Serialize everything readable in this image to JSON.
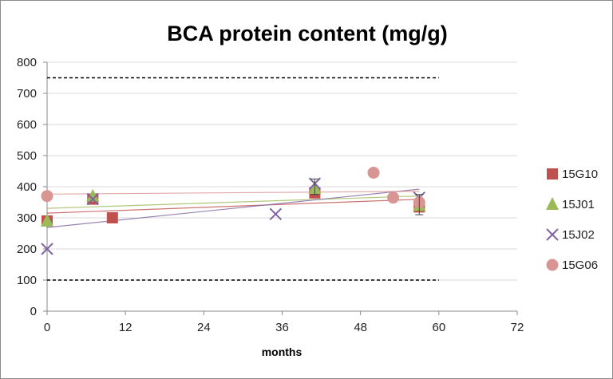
{
  "chart_data": {
    "type": "scatter",
    "title": "BCA protein content (mg/g)",
    "xlabel": "months",
    "ylabel": "",
    "xlim": [
      0,
      72
    ],
    "ylim": [
      0,
      800
    ],
    "xticks": [
      0,
      12,
      24,
      36,
      48,
      60,
      72
    ],
    "yticks": [
      0,
      100,
      200,
      300,
      400,
      500,
      600,
      700,
      800
    ],
    "grid": "horizontal",
    "legend_position": "right",
    "reference_lines": [
      {
        "y": 750,
        "x_range": [
          0,
          60
        ],
        "style": "dashed",
        "color": "#000000"
      },
      {
        "y": 100,
        "x_range": [
          0,
          60
        ],
        "style": "dashed",
        "color": "#000000"
      }
    ],
    "trendlines": "linear",
    "series": [
      {
        "name": "15G10",
        "marker": "square",
        "color": "#c0504d",
        "x": [
          0,
          7,
          10,
          41,
          57
        ],
        "y": [
          290,
          360,
          300,
          380,
          335
        ]
      },
      {
        "name": "15J01",
        "marker": "triangle",
        "color": "#9bbb59",
        "x": [
          0,
          7,
          41,
          57
        ],
        "y": [
          290,
          370,
          395,
          340
        ]
      },
      {
        "name": "15J02",
        "marker": "x",
        "color": "#8064a2",
        "x": [
          0,
          7,
          35,
          41,
          57
        ],
        "y": [
          200,
          360,
          312,
          410,
          365
        ]
      },
      {
        "name": "15G06",
        "marker": "circle",
        "color": "#d99594",
        "x": [
          0,
          50,
          53,
          57
        ],
        "y": [
          370,
          445,
          365,
          350
        ]
      }
    ],
    "error_bars": [
      {
        "x": 41,
        "low": 375,
        "high": 425
      },
      {
        "x": 57,
        "low": 310,
        "high": 375
      }
    ]
  }
}
